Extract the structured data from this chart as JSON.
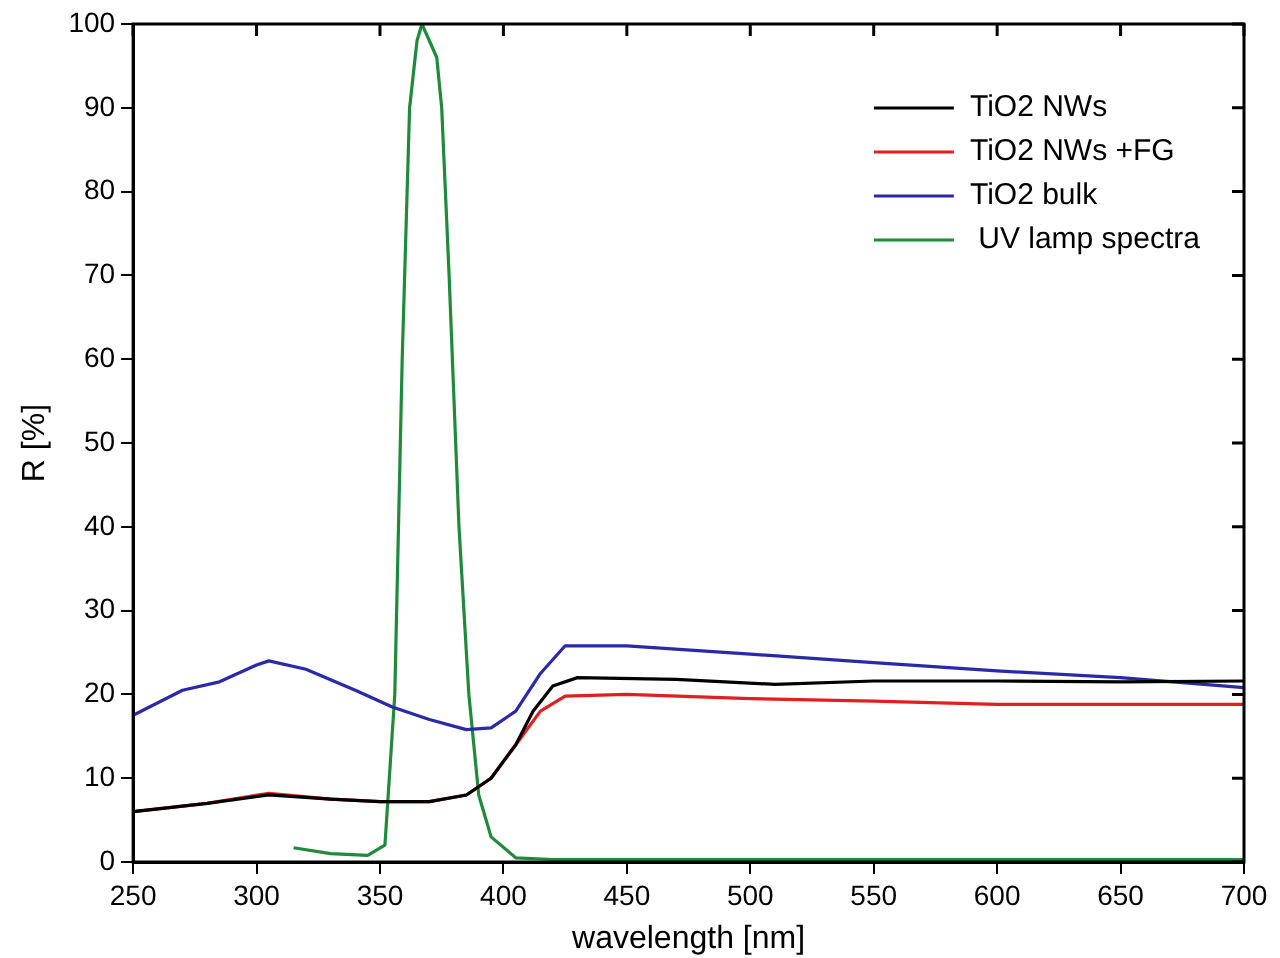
{
  "chart_data": {
    "type": "line",
    "xlabel": "wavelength [nm]",
    "ylabel": "R [%]",
    "xlim": [
      250,
      700
    ],
    "xticks": [
      250,
      300,
      350,
      400,
      450,
      500,
      550,
      600,
      650,
      700
    ],
    "ylim": [
      0,
      100
    ],
    "yticks": [
      0,
      10,
      20,
      30,
      40,
      50,
      60,
      70,
      80,
      90,
      100
    ],
    "grid": false,
    "legend": "top right",
    "marker": "none",
    "line_style": "solid",
    "series": [
      {
        "name": "TiO2 NWs",
        "color": "#000000",
        "x": [
          250,
          280,
          305,
          330,
          350,
          370,
          385,
          395,
          405,
          412,
          420,
          430,
          470,
          510,
          550,
          600,
          650,
          700
        ],
        "values": [
          6,
          7,
          8,
          7.5,
          7.2,
          7.2,
          8,
          10,
          14,
          18,
          21,
          22,
          21.8,
          21.2,
          21.6,
          21.6,
          21.5,
          21.6
        ]
      },
      {
        "name": "TiO2 NWs +FG",
        "color": "#e02020",
        "x": [
          250,
          280,
          305,
          330,
          350,
          370,
          385,
          395,
          405,
          415,
          425,
          450,
          500,
          550,
          600,
          650,
          700
        ],
        "values": [
          6,
          7,
          8.2,
          7.5,
          7.2,
          7.2,
          8,
          10,
          14,
          18,
          19.8,
          20,
          19.5,
          19.2,
          18.8,
          18.8,
          18.8
        ]
      },
      {
        "name": "TiO2 bulk",
        "color": "#2a2aa8",
        "x": [
          250,
          270,
          285,
          300,
          305,
          320,
          340,
          355,
          370,
          385,
          395,
          405,
          415,
          425,
          450,
          500,
          550,
          600,
          650,
          700
        ],
        "values": [
          17.5,
          20.5,
          21.5,
          23.5,
          24,
          23,
          20.5,
          18.5,
          17,
          15.8,
          16,
          18,
          22.5,
          25.8,
          25.8,
          24.8,
          23.8,
          22.8,
          22,
          20.8
        ]
      },
      {
        "name": " UV lamp spectra",
        "color": "#1f8a3a",
        "x": [
          315,
          330,
          345,
          352,
          356,
          359,
          362,
          365,
          367,
          370,
          373,
          375,
          378,
          382,
          386,
          390,
          395,
          405,
          420,
          700
        ],
        "values": [
          1.7,
          1,
          0.8,
          2,
          20,
          60,
          90,
          98,
          100,
          98,
          96,
          90,
          70,
          40,
          20,
          8,
          3,
          0.5,
          0.3,
          0.3
        ]
      }
    ]
  }
}
